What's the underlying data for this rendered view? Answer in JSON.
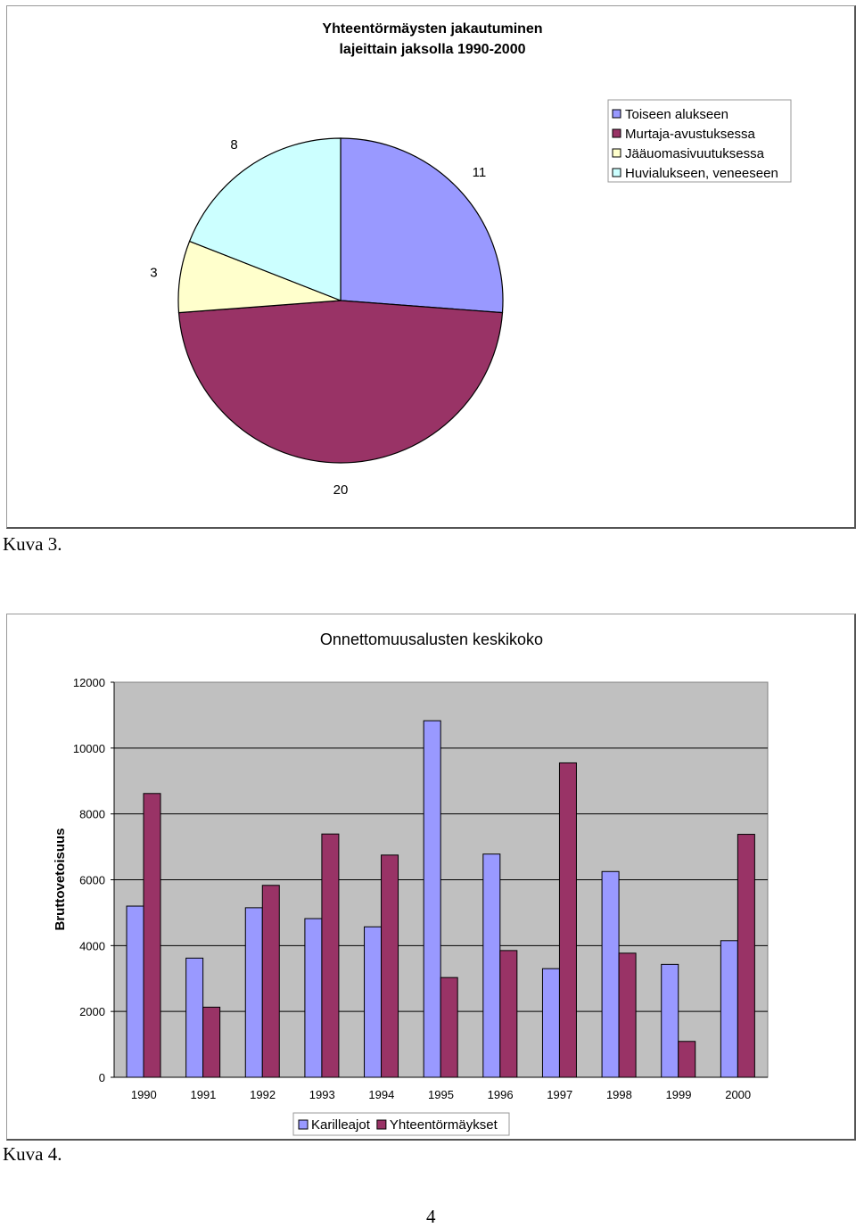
{
  "chart_data": [
    {
      "type": "pie",
      "title": "Yhteentörmäysten jakautuminen lajeittain jaksolla 1990-2000",
      "title_lines": [
        "Yhteentörmäysten jakautuminen",
        "lajeittain jaksolla 1990-2000"
      ],
      "categories": [
        "Toiseen alukseen",
        "Murtaja-avustuksessa",
        "Jääuomasivuutuksessa",
        "Huvialukseen, veneeseen"
      ],
      "values": [
        11,
        20,
        3,
        8
      ],
      "colors": [
        "#9999ff",
        "#993366",
        "#ffffcc",
        "#ccffff"
      ],
      "legend_position": "top-right"
    },
    {
      "type": "bar",
      "title": "Onnettomuusalusten keskikoko",
      "ylabel": "Bruttovetoisuus",
      "xlabel": "",
      "categories": [
        "1990",
        "1991",
        "1992",
        "1993",
        "1994",
        "1995",
        "1996",
        "1997",
        "1998",
        "1999",
        "2000"
      ],
      "series": [
        {
          "name": "Karilleajot",
          "color": "#9999ff",
          "values": [
            5200,
            3620,
            5150,
            4820,
            4570,
            10830,
            6780,
            3300,
            6250,
            3430,
            4150
          ]
        },
        {
          "name": "Yhteentörmäykset",
          "color": "#993366",
          "values": [
            8620,
            2130,
            5830,
            7390,
            6750,
            3030,
            3850,
            9550,
            3770,
            1090,
            7380
          ]
        }
      ],
      "ylim": [
        0,
        12000
      ],
      "yticks": [
        0,
        2000,
        4000,
        6000,
        8000,
        10000,
        12000
      ],
      "plot_background": "#c0c0c0",
      "grid": true,
      "legend_position": "bottom"
    }
  ],
  "captions": [
    "Kuva 3.",
    "Kuva 4."
  ],
  "page_number": "4"
}
